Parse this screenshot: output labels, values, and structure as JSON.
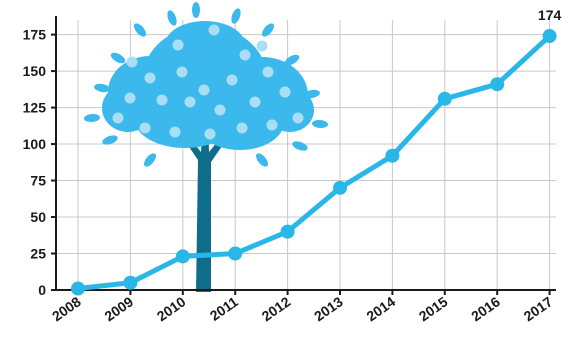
{
  "chart_data": {
    "type": "line",
    "title": "",
    "xlabel": "",
    "ylabel": "",
    "categories": [
      "2008",
      "2009",
      "2010",
      "2011",
      "2012",
      "2013",
      "2014",
      "2015",
      "2016",
      "2017"
    ],
    "series": [
      {
        "values": [
          1,
          5,
          23,
          25,
          40,
          70,
          92,
          131,
          141,
          174
        ]
      }
    ],
    "ylim": [
      0,
      185
    ],
    "yticks": [
      0,
      25,
      50,
      75,
      100,
      125,
      150,
      175
    ],
    "data_labels": [
      {
        "category": "2017",
        "text": "174"
      }
    ],
    "grid": "horizontal-and-vertical",
    "colors": {
      "line": "#29b6e8",
      "marker": "#29b6e8",
      "grid": "#c8c8c8",
      "axis": "#1a1a1a",
      "tree_leaves": "#3bb8ec",
      "tree_trunk": "#0f6d8c"
    },
    "decoration": "tree-illustration"
  }
}
